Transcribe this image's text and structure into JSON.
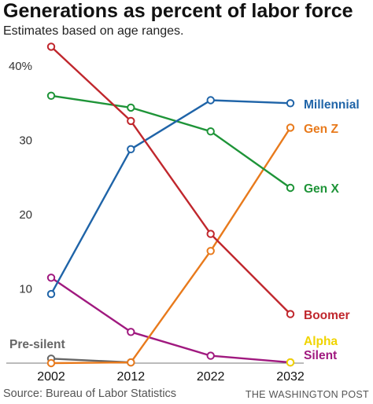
{
  "header": {
    "title": "Generations as percent of labor force",
    "subtitle": "Estimates based on age ranges."
  },
  "footer": {
    "source": "Source: Bureau of Labor Statistics",
    "credit": "THE WASHINGTON POST"
  },
  "chart_data": {
    "type": "line",
    "x": [
      2002,
      2012,
      2022,
      2032
    ],
    "xticks": [
      "2002",
      "2012",
      "2022",
      "2032"
    ],
    "yticks": [
      {
        "value": 10,
        "label": "10"
      },
      {
        "value": 20,
        "label": "20"
      },
      {
        "value": 30,
        "label": "30"
      },
      {
        "value": 40,
        "label": "40%"
      }
    ],
    "ylim": [
      0,
      42
    ],
    "grid": false,
    "series": [
      {
        "name": "Silent",
        "color": "#a0197f",
        "values": [
          11.5,
          4.2,
          1.0,
          0.1
        ]
      },
      {
        "name": "Pre-silent",
        "color": "#666666",
        "values": [
          0.6,
          0.1,
          null,
          null
        ]
      },
      {
        "name": "Gen Z",
        "color": "#e87a1c",
        "values": [
          0.0,
          0.1,
          15.1,
          31.7
        ]
      },
      {
        "name": "Alpha",
        "color": "#f0d400",
        "values": [
          null,
          null,
          null,
          0.1
        ]
      },
      {
        "name": "Gen X",
        "color": "#1e9438",
        "values": [
          36.0,
          34.4,
          31.2,
          23.6
        ]
      },
      {
        "name": "Millennial",
        "color": "#1f64a8",
        "values": [
          9.3,
          28.8,
          35.4,
          35.0
        ]
      },
      {
        "name": "Boomer",
        "color": "#c0272d",
        "values": [
          42.6,
          32.6,
          17.4,
          6.6
        ]
      }
    ]
  }
}
